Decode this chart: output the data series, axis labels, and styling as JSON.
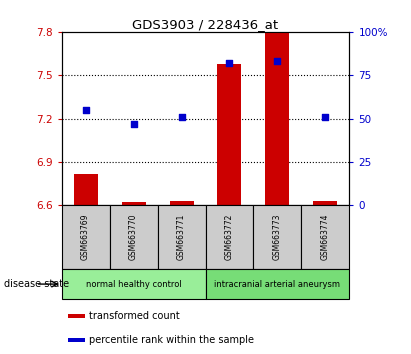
{
  "title": "GDS3903 / 228436_at",
  "samples": [
    "GSM663769",
    "GSM663770",
    "GSM663771",
    "GSM663772",
    "GSM663773",
    "GSM663774"
  ],
  "transformed_count": [
    6.82,
    6.62,
    6.63,
    7.58,
    7.8,
    6.63
  ],
  "percentile_rank": [
    55,
    47,
    51,
    82,
    83,
    51
  ],
  "ylim_left": [
    6.6,
    7.8
  ],
  "ylim_right": [
    0,
    100
  ],
  "yticks_left": [
    6.6,
    6.9,
    7.2,
    7.5,
    7.8
  ],
  "ytick_labels_left": [
    "6.6",
    "6.9",
    "7.2",
    "7.5",
    "7.8"
  ],
  "yticks_right": [
    0,
    25,
    50,
    75,
    100
  ],
  "ytick_labels_right": [
    "0",
    "25",
    "50",
    "75",
    "100%"
  ],
  "bar_color": "#cc0000",
  "dot_color": "#0000cc",
  "bar_bottom": 6.6,
  "groups": [
    {
      "label": "normal healthy control",
      "start": 0,
      "end": 3,
      "color": "#99ee99"
    },
    {
      "label": "intracranial arterial aneurysm",
      "start": 3,
      "end": 6,
      "color": "#77dd77"
    }
  ],
  "disease_state_label": "disease state",
  "legend_items": [
    {
      "color": "#cc0000",
      "label": "transformed count"
    },
    {
      "color": "#0000cc",
      "label": "percentile rank within the sample"
    }
  ],
  "grid_yticks": [
    6.9,
    7.2,
    7.5
  ],
  "sample_box_color": "#cccccc",
  "plot_bg": "white"
}
